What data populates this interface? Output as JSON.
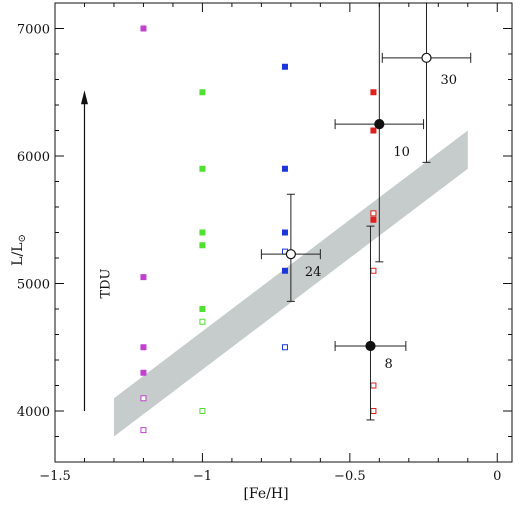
{
  "chart_data": {
    "type": "scatter",
    "xlabel": "[Fe/H]",
    "ylabel_main": "L/L",
    "ylabel_sub": "⊙",
    "xlim": [
      -1.5,
      0.05
    ],
    "ylim": [
      3600,
      7200
    ],
    "x_ticks": [
      -1.5,
      -1,
      -0.5,
      0
    ],
    "x_tick_labels": [
      "−1.5",
      "−1",
      "−0.5",
      "0"
    ],
    "y_ticks": [
      4000,
      5000,
      6000,
      7000
    ],
    "y_tick_labels": [
      "4000",
      "5000",
      "6000",
      "7000"
    ],
    "grid": false,
    "band": {
      "color": "#c6cccb",
      "polygon": [
        [
          -1.3,
          3800
        ],
        [
          -0.1,
          5900
        ],
        [
          -0.1,
          6200
        ],
        [
          -1.3,
          4100
        ]
      ]
    },
    "series": [
      {
        "color": "#c040d0",
        "filled": [
          [
            -1.2,
            7000
          ],
          [
            -1.2,
            5050
          ],
          [
            -1.2,
            4500
          ],
          [
            -1.2,
            4300
          ]
        ],
        "open": [
          [
            -1.2,
            4100
          ],
          [
            -1.2,
            3850
          ]
        ]
      },
      {
        "color": "#50e030",
        "filled": [
          [
            -1.0,
            6500
          ],
          [
            -1.0,
            5900
          ],
          [
            -1.0,
            5400
          ],
          [
            -1.0,
            5300
          ],
          [
            -1.0,
            4800
          ]
        ],
        "open": [
          [
            -1.0,
            4700
          ],
          [
            -1.0,
            4000
          ]
        ]
      },
      {
        "color": "#1a36d8",
        "filled": [
          [
            -0.72,
            6700
          ],
          [
            -0.72,
            5900
          ],
          [
            -0.72,
            5400
          ],
          [
            -0.72,
            5100
          ]
        ],
        "open": [
          [
            -0.72,
            5250
          ],
          [
            -0.72,
            4500
          ]
        ]
      },
      {
        "color": "#e0201c",
        "filled": [
          [
            -0.42,
            6500
          ],
          [
            -0.42,
            6200
          ],
          [
            -0.42,
            5500
          ]
        ],
        "open": [
          [
            -0.42,
            5550
          ],
          [
            -0.42,
            5100
          ],
          [
            -0.42,
            4200
          ],
          [
            -0.42,
            4000
          ]
        ]
      }
    ],
    "clusters": [
      {
        "label": "30",
        "x": -0.24,
        "y": 6770,
        "xerr": 0.15,
        "yerr_low": 820,
        "yerr_high": 500,
        "filled": false
      },
      {
        "label": "10",
        "x": -0.4,
        "y": 6250,
        "xerr": 0.15,
        "yerr_low": 1080,
        "yerr_high": 1000,
        "filled": true
      },
      {
        "label": "24",
        "x": -0.7,
        "y": 5230,
        "xerr": 0.1,
        "yerr_low": 370,
        "yerr_high": 470,
        "filled": false
      },
      {
        "label": "8",
        "x": -0.43,
        "y": 4510,
        "xerr": 0.12,
        "yerr_low": 580,
        "yerr_high": 940,
        "filled": true
      }
    ],
    "annotation": {
      "text": "TDU",
      "arrow_x": -1.4,
      "arrow_from": 4000,
      "arrow_to": 6500
    }
  }
}
